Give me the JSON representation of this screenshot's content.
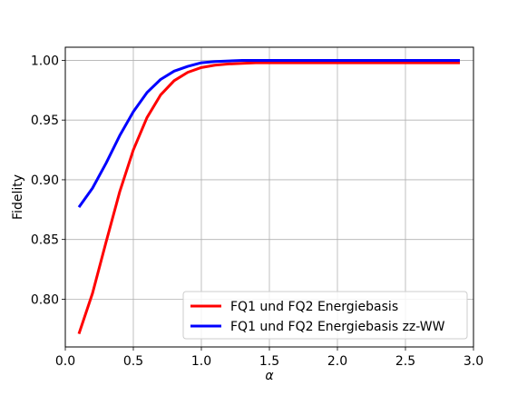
{
  "chart_data": {
    "type": "line",
    "xlabel": "α",
    "ylabel": "Fidelity",
    "xlim": [
      0.0,
      3.0
    ],
    "ylim": [
      0.76,
      1.011
    ],
    "x_ticks": [
      "0.0",
      "0.5",
      "1.0",
      "1.5",
      "2.0",
      "2.5",
      "3.0"
    ],
    "y_ticks": [
      "0.80",
      "0.85",
      "0.90",
      "0.95",
      "1.00"
    ],
    "grid": true,
    "legend_position": "lower-right",
    "x": [
      0.1,
      0.2,
      0.3,
      0.4,
      0.5,
      0.6,
      0.7,
      0.8,
      0.9,
      1.0,
      1.1,
      1.2,
      1.3,
      1.4,
      1.5,
      1.6,
      1.7,
      1.8,
      1.9,
      2.0,
      2.1,
      2.2,
      2.3,
      2.4,
      2.5,
      2.6,
      2.7,
      2.8,
      2.9
    ],
    "series": [
      {
        "name": "FQ1 und FQ2 Energiebasis",
        "color": "#ff0000",
        "values": [
          0.771,
          0.805,
          0.848,
          0.89,
          0.925,
          0.952,
          0.971,
          0.983,
          0.99,
          0.994,
          0.996,
          0.997,
          0.9975,
          0.998,
          0.998,
          0.998,
          0.998,
          0.998,
          0.998,
          0.998,
          0.998,
          0.998,
          0.998,
          0.998,
          0.998,
          0.998,
          0.998,
          0.998,
          0.998
        ]
      },
      {
        "name": "FQ1 und FQ2 Energiebasis zz-WW",
        "color": "#0000ff",
        "values": [
          0.877,
          0.893,
          0.914,
          0.937,
          0.957,
          0.973,
          0.984,
          0.991,
          0.995,
          0.998,
          0.999,
          0.9995,
          1.0,
          1.0,
          1.0,
          1.0,
          1.0,
          1.0,
          1.0,
          1.0,
          1.0,
          1.0,
          1.0,
          1.0,
          1.0,
          1.0,
          1.0,
          1.0,
          1.0
        ]
      }
    ]
  }
}
